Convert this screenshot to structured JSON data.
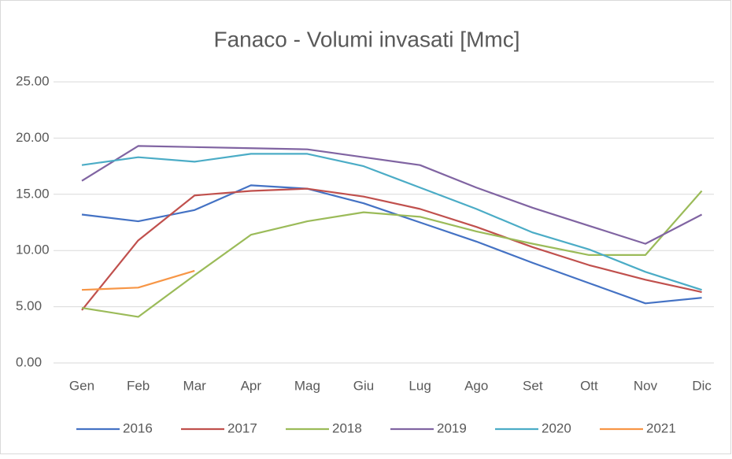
{
  "chart_data": {
    "type": "line",
    "title": "Fanaco - Volumi invasati [Mmc]",
    "categories": [
      "Gen",
      "Feb",
      "Mar",
      "Apr",
      "Mag",
      "Giu",
      "Lug",
      "Ago",
      "Set",
      "Ott",
      "Nov",
      "Dic"
    ],
    "series": [
      {
        "name": "2016",
        "color": "#4472c4",
        "values": [
          13.2,
          12.6,
          13.6,
          15.8,
          15.5,
          14.2,
          12.5,
          10.8,
          8.9,
          7.1,
          5.3,
          5.8
        ]
      },
      {
        "name": "2017",
        "color": "#c0504d",
        "values": [
          4.7,
          10.9,
          14.9,
          15.3,
          15.5,
          14.8,
          13.7,
          12.1,
          10.3,
          8.7,
          7.4,
          6.3
        ]
      },
      {
        "name": "2018",
        "color": "#9bbb59",
        "values": [
          4.9,
          4.1,
          7.8,
          11.4,
          12.6,
          13.4,
          13.0,
          11.7,
          10.6,
          9.6,
          9.6,
          15.3
        ]
      },
      {
        "name": "2019",
        "color": "#8064a2",
        "values": [
          16.2,
          19.3,
          19.2,
          19.1,
          19.0,
          18.3,
          17.6,
          15.6,
          13.8,
          12.2,
          10.6,
          13.2
        ]
      },
      {
        "name": "2020",
        "color": "#4bacc6",
        "values": [
          17.6,
          18.3,
          17.9,
          18.6,
          18.6,
          17.5,
          15.6,
          13.7,
          11.6,
          10.1,
          8.1,
          6.5
        ]
      },
      {
        "name": "2021",
        "color": "#f79646",
        "values": [
          6.5,
          6.7,
          8.2,
          null,
          null,
          null,
          null,
          null,
          null,
          null,
          null,
          null
        ]
      }
    ],
    "ylim": [
      0,
      25
    ],
    "yticks": [
      {
        "value": 0,
        "label": "0.00"
      },
      {
        "value": 5,
        "label": "5.00"
      },
      {
        "value": 10,
        "label": "10.00"
      },
      {
        "value": 15,
        "label": "15.00"
      },
      {
        "value": 20,
        "label": "20.00"
      },
      {
        "value": 25,
        "label": "25.00"
      }
    ],
    "grid": true,
    "legend": "bottom"
  }
}
